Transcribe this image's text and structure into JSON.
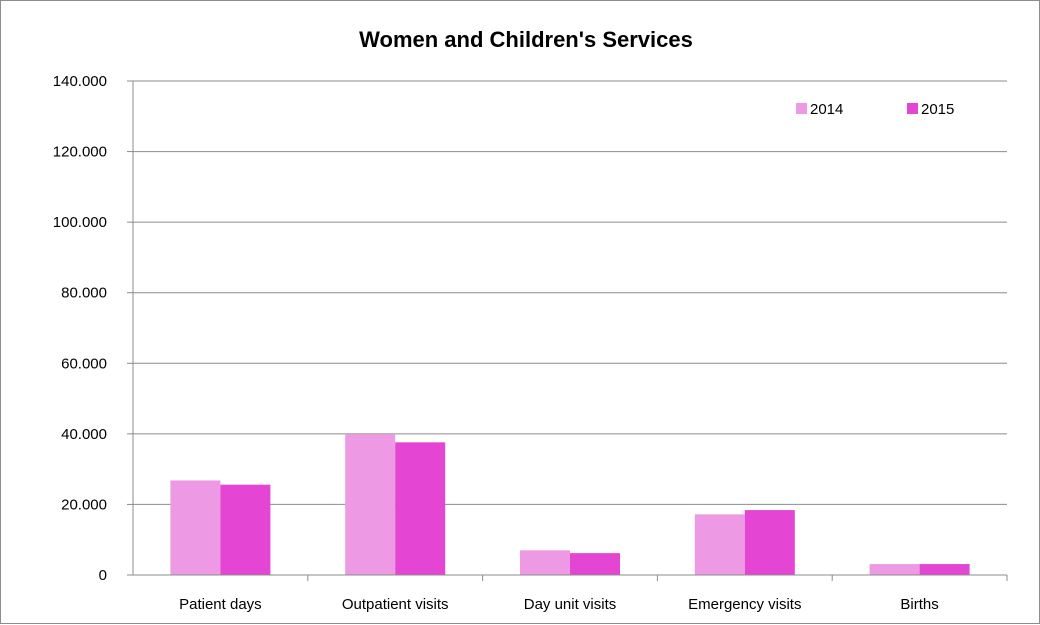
{
  "chart_data": {
    "type": "bar",
    "title": "Women and Children's Services",
    "categories": [
      "Patient days",
      "Outpatient visits",
      "Day unit visits",
      "Emergency visits",
      "Births"
    ],
    "series": [
      {
        "name": "2014",
        "color": "#ee99e3",
        "values": [
          26800,
          39900,
          7000,
          17200,
          3100
        ]
      },
      {
        "name": "2015",
        "color": "#e445d2",
        "values": [
          25600,
          37600,
          6200,
          18400,
          3100
        ]
      }
    ],
    "y_ticks": [
      "0",
      "20.000",
      "40.000",
      "60.000",
      "80.000",
      "100.000",
      "120.000",
      "140.000"
    ],
    "ylim": [
      0,
      140000
    ],
    "y_tick_step": 20000,
    "xlabel": "",
    "ylabel": "",
    "grid": true,
    "legend_position": "top-right"
  }
}
